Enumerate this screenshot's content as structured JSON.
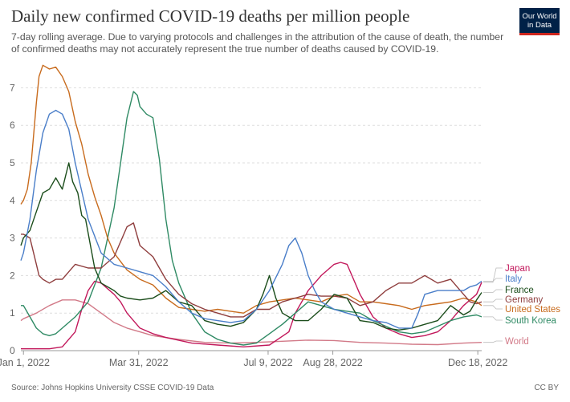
{
  "header": {
    "title": "Daily new confirmed COVID-19 deaths per million people",
    "subtitle": "7-day rolling average. Due to varying protocols and challenges in the attribution of the cause of death, the number of confirmed deaths may not accurately represent the true number of deaths caused by COVID-19.",
    "logo_line1": "Our World",
    "logo_line2": "in Data"
  },
  "footer": {
    "source": "Source: Johns Hopkins University CSSE COVID-19 Data",
    "license": "CC BY"
  },
  "chart_data": {
    "type": "line",
    "x_tick_labels": [
      "Jan 1, 2022",
      "Mar 31, 2022",
      "Jul 9, 2022",
      "Aug 28, 2022",
      "Dec 18, 2022"
    ],
    "x_tick_days": [
      0,
      89,
      189,
      239,
      351
    ],
    "x_range_days": [
      -2,
      354
    ],
    "y_ticks": [
      0,
      1,
      2,
      3,
      4,
      5,
      6,
      7
    ],
    "ylim": [
      0,
      7.5
    ],
    "grid": "horizontal dashed",
    "legend": "right, end of lines",
    "series": [
      {
        "name": "Japan",
        "color": "#c2185b",
        "x": [
          -2,
          20,
          30,
          40,
          45,
          50,
          55,
          60,
          70,
          75,
          80,
          90,
          100,
          110,
          130,
          150,
          170,
          190,
          205,
          210,
          220,
          230,
          240,
          245,
          250,
          255,
          260,
          270,
          280,
          290,
          300,
          310,
          320,
          330,
          340,
          350,
          354
        ],
        "values": [
          0.05,
          0.05,
          0.1,
          0.5,
          1.1,
          1.6,
          1.85,
          1.8,
          1.5,
          1.3,
          1.0,
          0.6,
          0.45,
          0.35,
          0.2,
          0.15,
          0.1,
          0.15,
          0.5,
          1.0,
          1.6,
          2.0,
          2.3,
          2.35,
          2.3,
          1.9,
          1.5,
          0.9,
          0.6,
          0.45,
          0.35,
          0.4,
          0.5,
          0.8,
          1.2,
          1.5,
          1.82
        ]
      },
      {
        "name": "Italy",
        "color": "#4a7ec9",
        "x": [
          -2,
          0,
          5,
          10,
          15,
          20,
          25,
          30,
          35,
          40,
          50,
          60,
          70,
          80,
          90,
          100,
          110,
          120,
          130,
          140,
          150,
          160,
          170,
          180,
          190,
          200,
          205,
          210,
          215,
          220,
          225,
          230,
          240,
          250,
          260,
          270,
          280,
          290,
          300,
          305,
          310,
          320,
          330,
          340,
          345,
          350,
          354
        ],
        "values": [
          2.4,
          2.6,
          3.5,
          4.8,
          5.8,
          6.3,
          6.4,
          6.3,
          5.9,
          5.0,
          3.5,
          2.6,
          2.3,
          2.2,
          2.1,
          2.0,
          1.7,
          1.3,
          1.0,
          0.85,
          0.8,
          0.75,
          0.8,
          1.1,
          1.6,
          2.3,
          2.8,
          3.0,
          2.6,
          2.0,
          1.6,
          1.3,
          1.1,
          1.0,
          0.9,
          0.8,
          0.75,
          0.6,
          0.6,
          1.0,
          1.5,
          1.6,
          1.6,
          1.6,
          1.7,
          1.75,
          1.85
        ]
      },
      {
        "name": "France",
        "color": "#1b4d1b",
        "x": [
          -2,
          0,
          5,
          10,
          15,
          20,
          25,
          30,
          35,
          38,
          42,
          45,
          48,
          55,
          60,
          70,
          75,
          80,
          90,
          100,
          110,
          120,
          130,
          140,
          150,
          160,
          170,
          180,
          185,
          190,
          195,
          200,
          210,
          220,
          230,
          240,
          250,
          260,
          270,
          280,
          290,
          300,
          310,
          320,
          330,
          340,
          345,
          350,
          354
        ],
        "values": [
          2.8,
          3.0,
          3.2,
          3.7,
          4.2,
          4.3,
          4.6,
          4.3,
          5.0,
          4.5,
          4.2,
          3.6,
          3.5,
          2.2,
          1.8,
          1.6,
          1.45,
          1.4,
          1.35,
          1.4,
          1.6,
          1.3,
          1.2,
          0.8,
          0.7,
          0.65,
          0.75,
          1.1,
          1.5,
          2.0,
          1.4,
          1.0,
          0.8,
          0.8,
          1.1,
          1.5,
          1.4,
          0.8,
          0.75,
          0.6,
          0.55,
          0.6,
          0.7,
          0.8,
          1.2,
          0.95,
          1.05,
          1.35,
          1.55
        ]
      },
      {
        "name": "Germany",
        "color": "#8f3e3e",
        "x": [
          -2,
          0,
          5,
          10,
          12,
          15,
          20,
          25,
          30,
          35,
          40,
          50,
          60,
          70,
          80,
          85,
          90,
          100,
          110,
          120,
          130,
          140,
          150,
          160,
          170,
          180,
          190,
          200,
          210,
          220,
          230,
          240,
          250,
          260,
          270,
          280,
          290,
          300,
          310,
          320,
          330,
          340,
          345,
          350,
          354
        ],
        "values": [
          3.1,
          3.1,
          3.0,
          2.3,
          2.0,
          1.9,
          1.8,
          1.9,
          1.9,
          2.1,
          2.3,
          2.2,
          2.2,
          2.5,
          3.3,
          3.4,
          2.8,
          2.5,
          1.9,
          1.5,
          1.25,
          1.1,
          1.0,
          0.9,
          0.9,
          1.1,
          1.1,
          1.3,
          1.4,
          1.5,
          1.45,
          1.45,
          1.4,
          1.2,
          1.3,
          1.6,
          1.8,
          1.8,
          2.0,
          1.8,
          1.9,
          1.5,
          1.3,
          1.25,
          1.3
        ]
      },
      {
        "name": "United States",
        "color": "#c86b1d",
        "x": [
          -2,
          0,
          3,
          6,
          8,
          10,
          12,
          15,
          20,
          25,
          30,
          35,
          40,
          45,
          50,
          55,
          60,
          65,
          70,
          80,
          90,
          100,
          110,
          120,
          130,
          140,
          150,
          160,
          170,
          180,
          190,
          200,
          210,
          220,
          230,
          240,
          250,
          260,
          270,
          280,
          290,
          300,
          310,
          320,
          330,
          340,
          350,
          354
        ],
        "values": [
          3.9,
          4.0,
          4.3,
          5.0,
          5.8,
          6.6,
          7.3,
          7.6,
          7.5,
          7.55,
          7.3,
          6.9,
          6.1,
          5.5,
          4.7,
          4.1,
          3.6,
          3.0,
          2.6,
          2.15,
          1.9,
          1.75,
          1.4,
          1.15,
          1.1,
          1.05,
          1.1,
          1.05,
          1.0,
          1.2,
          1.3,
          1.35,
          1.4,
          1.35,
          1.3,
          1.45,
          1.5,
          1.3,
          1.3,
          1.25,
          1.2,
          1.1,
          1.2,
          1.25,
          1.3,
          1.4,
          1.3,
          1.2
        ]
      },
      {
        "name": "South Korea",
        "color": "#2f8a64",
        "x": [
          -2,
          0,
          5,
          10,
          15,
          20,
          25,
          30,
          40,
          50,
          60,
          70,
          75,
          80,
          85,
          88,
          90,
          95,
          100,
          105,
          110,
          115,
          120,
          130,
          140,
          150,
          160,
          170,
          180,
          190,
          200,
          210,
          220,
          230,
          240,
          250,
          260,
          270,
          280,
          290,
          300,
          310,
          320,
          330,
          340,
          350,
          354
        ],
        "values": [
          1.2,
          1.2,
          0.9,
          0.6,
          0.45,
          0.4,
          0.45,
          0.6,
          0.9,
          1.3,
          2.2,
          3.8,
          5.0,
          6.2,
          6.9,
          6.8,
          6.5,
          6.3,
          6.2,
          5.1,
          3.5,
          2.4,
          1.8,
          1.0,
          0.5,
          0.3,
          0.2,
          0.15,
          0.2,
          0.45,
          0.7,
          1.0,
          1.3,
          1.2,
          1.1,
          1.05,
          1.0,
          0.8,
          0.65,
          0.5,
          0.45,
          0.5,
          0.65,
          0.8,
          0.9,
          0.95,
          0.9
        ]
      },
      {
        "name": "World",
        "color": "#d27a88",
        "x": [
          -2,
          0,
          10,
          20,
          30,
          40,
          50,
          60,
          70,
          80,
          90,
          100,
          120,
          140,
          160,
          180,
          200,
          220,
          240,
          260,
          280,
          300,
          320,
          340,
          354
        ],
        "values": [
          0.8,
          0.85,
          1.0,
          1.2,
          1.35,
          1.35,
          1.25,
          1.0,
          0.75,
          0.6,
          0.5,
          0.4,
          0.3,
          0.22,
          0.2,
          0.22,
          0.25,
          0.28,
          0.27,
          0.22,
          0.2,
          0.17,
          0.16,
          0.2,
          0.22
        ]
      }
    ]
  }
}
